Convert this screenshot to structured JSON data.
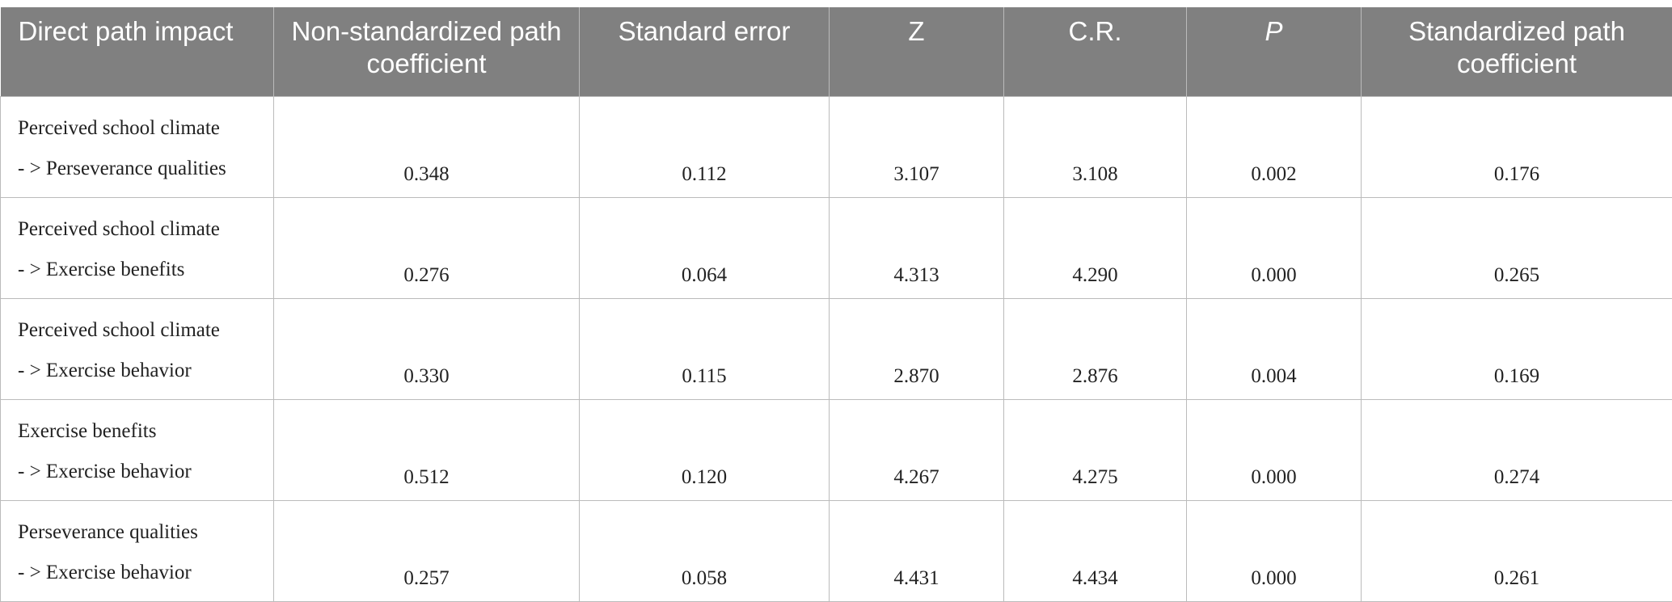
{
  "table": {
    "header": [
      "Direct path impact",
      "Non-standardized path coefficient",
      "Standard error",
      "Z",
      "C.R.",
      "P",
      "Standardized path coefficient"
    ],
    "rows": [
      [
        [
          "Perceived school climate",
          "- > Perseverance qualities"
        ],
        "0.348",
        "0.112",
        "3.107",
        "3.108",
        "0.002",
        "0.176"
      ],
      [
        [
          "Perceived school climate",
          "- > Exercise benefits"
        ],
        "0.276",
        "0.064",
        "4.313",
        "4.290",
        "0.000",
        "0.265"
      ],
      [
        [
          "Perceived school climate",
          "- > Exercise behavior"
        ],
        "0.330",
        "0.115",
        "2.870",
        "2.876",
        "0.004",
        "0.169"
      ],
      [
        [
          "Exercise benefits",
          "- > Exercise behavior"
        ],
        "0.512",
        "0.120",
        "4.267",
        "4.275",
        "0.000",
        "0.274"
      ],
      [
        [
          "Perseverance qualities",
          "- > Exercise behavior"
        ],
        "0.257",
        "0.058",
        "4.431",
        "4.434",
        "0.000",
        "0.261"
      ]
    ]
  }
}
